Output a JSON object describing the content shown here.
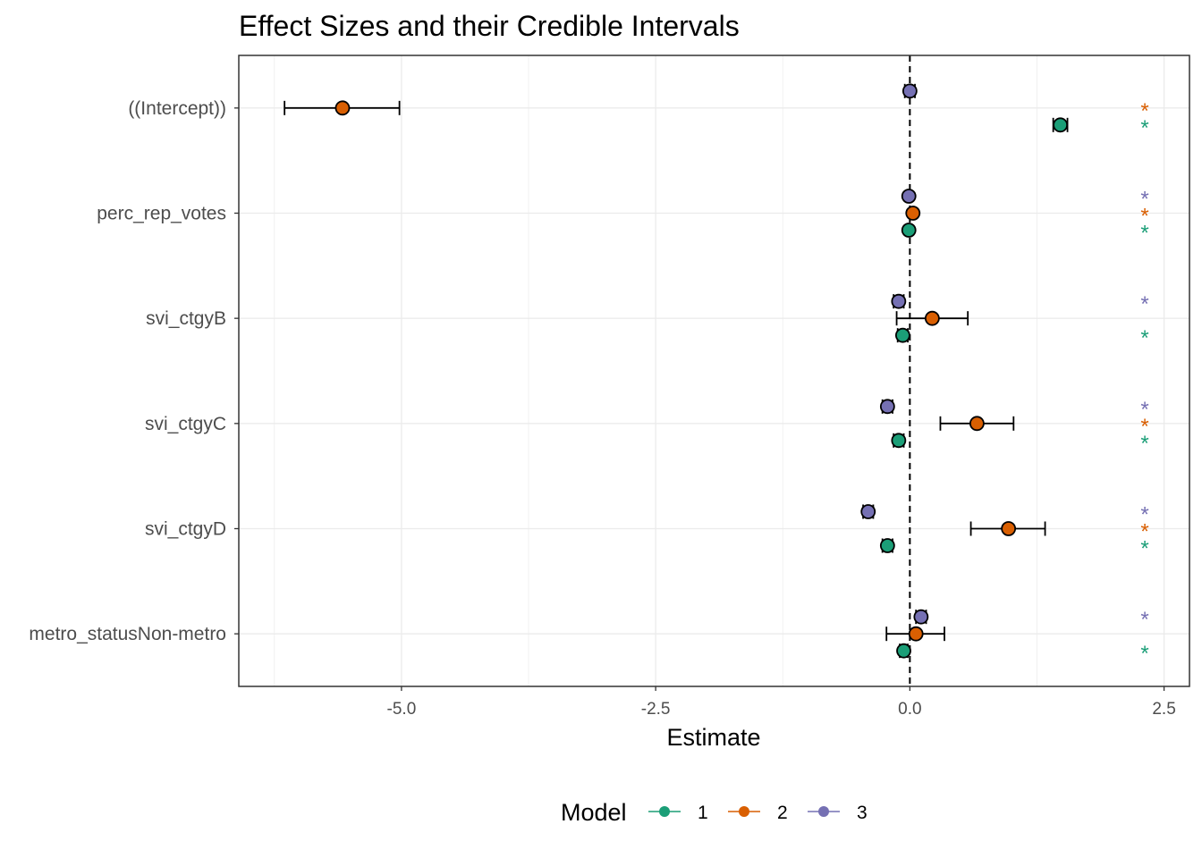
{
  "chart_data": {
    "type": "scatter",
    "subtype": "coefficient-plot",
    "title": "Effect Sizes and their Credible Intervals",
    "xlabel": "Estimate",
    "ylabel": "",
    "xlim": [
      -6.6,
      2.75
    ],
    "x_ticks": [
      -5.0,
      -2.5,
      0.0,
      2.5
    ],
    "x_tick_labels": [
      "-5.0",
      "-2.5",
      "0.0",
      "2.5"
    ],
    "grid": true,
    "reference_line": {
      "x": 0,
      "style": "dashed"
    },
    "categories": [
      "((Intercept))",
      "perc_rep_votes",
      "svi_ctgyB",
      "svi_ctgyC",
      "svi_ctgyD",
      "metro_statusNon-metro"
    ],
    "legend": {
      "title": "Model",
      "position": "bottom",
      "entries": [
        "1",
        "2",
        "3"
      ]
    },
    "series": [
      {
        "name": "1",
        "color": "#1b9e77",
        "points": [
          {
            "term": "((Intercept))",
            "estimate": 1.48,
            "low": 1.41,
            "high": 1.55,
            "significant": true
          },
          {
            "term": "perc_rep_votes",
            "estimate": -0.01,
            "low": -0.02,
            "high": 0.0,
            "significant": true
          },
          {
            "term": "svi_ctgyB",
            "estimate": -0.07,
            "low": -0.12,
            "high": -0.02,
            "significant": true
          },
          {
            "term": "svi_ctgyC",
            "estimate": -0.11,
            "low": -0.16,
            "high": -0.06,
            "significant": true
          },
          {
            "term": "svi_ctgyD",
            "estimate": -0.22,
            "low": -0.27,
            "high": -0.17,
            "significant": true
          },
          {
            "term": "metro_statusNon-metro",
            "estimate": -0.06,
            "low": -0.1,
            "high": -0.02,
            "significant": true
          }
        ]
      },
      {
        "name": "2",
        "color": "#d95f02",
        "points": [
          {
            "term": "((Intercept))",
            "estimate": -5.58,
            "low": -6.15,
            "high": -5.02,
            "significant": true
          },
          {
            "term": "perc_rep_votes",
            "estimate": 0.03,
            "low": 0.02,
            "high": 0.04,
            "significant": true
          },
          {
            "term": "svi_ctgyB",
            "estimate": 0.22,
            "low": -0.13,
            "high": 0.57,
            "significant": false
          },
          {
            "term": "svi_ctgyC",
            "estimate": 0.66,
            "low": 0.3,
            "high": 1.02,
            "significant": true
          },
          {
            "term": "svi_ctgyD",
            "estimate": 0.97,
            "low": 0.6,
            "high": 1.33,
            "significant": true
          },
          {
            "term": "metro_statusNon-metro",
            "estimate": 0.06,
            "low": -0.23,
            "high": 0.34,
            "significant": false
          }
        ]
      },
      {
        "name": "3",
        "color": "#7570b3",
        "points": [
          {
            "term": "((Intercept))",
            "estimate": 0.0,
            "low": -0.05,
            "high": 0.05,
            "significant": false
          },
          {
            "term": "perc_rep_votes",
            "estimate": -0.01,
            "low": -0.02,
            "high": 0.0,
            "significant": true
          },
          {
            "term": "svi_ctgyB",
            "estimate": -0.11,
            "low": -0.16,
            "high": -0.06,
            "significant": true
          },
          {
            "term": "svi_ctgyC",
            "estimate": -0.22,
            "low": -0.27,
            "high": -0.17,
            "significant": true
          },
          {
            "term": "svi_ctgyD",
            "estimate": -0.41,
            "low": -0.46,
            "high": -0.36,
            "significant": true
          },
          {
            "term": "metro_statusNon-metro",
            "estimate": 0.11,
            "low": 0.06,
            "high": 0.16,
            "significant": true
          }
        ]
      }
    ],
    "significance_marker": "*"
  }
}
